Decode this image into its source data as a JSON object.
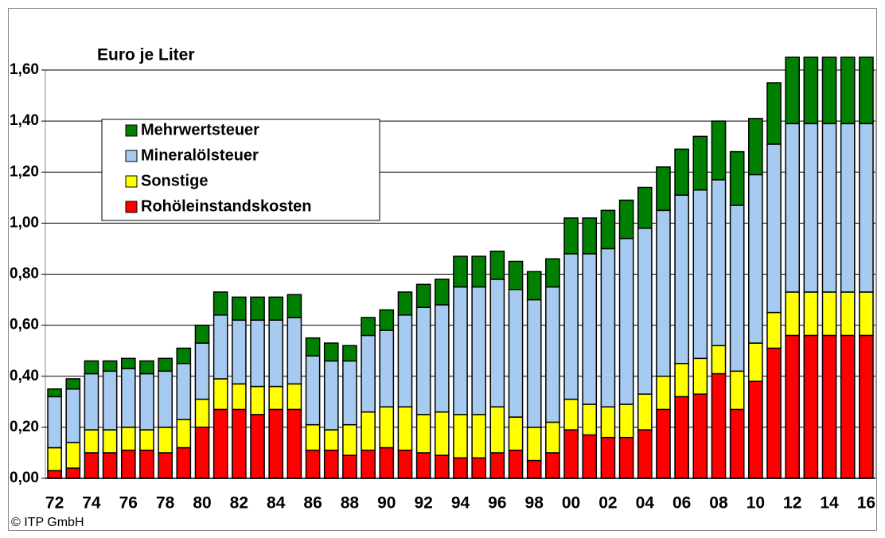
{
  "chart_data": {
    "type": "stacked_bar",
    "title": "Euro je Liter",
    "source": "© ITP GmbH",
    "categories": [
      "72",
      null,
      "74",
      null,
      "76",
      null,
      "78",
      null,
      "80",
      null,
      "82",
      null,
      "84",
      null,
      "86",
      null,
      "88",
      null,
      "90",
      null,
      "92",
      null,
      "94",
      null,
      "96",
      null,
      "98",
      null,
      "00",
      null,
      "02",
      null,
      "04",
      null,
      "06",
      null,
      "08",
      null,
      "10",
      null,
      "12",
      null,
      "14",
      null,
      "16"
    ],
    "series": [
      {
        "name": "Rohöleinstandskosten",
        "color": "#ff0000",
        "values": [
          0.03,
          0.04,
          0.1,
          0.1,
          0.11,
          0.11,
          0.1,
          0.12,
          0.2,
          0.27,
          0.27,
          0.25,
          0.27,
          0.27,
          0.11,
          0.11,
          0.09,
          0.11,
          0.12,
          0.11,
          0.1,
          0.09,
          0.08,
          0.08,
          0.1,
          0.11,
          0.07,
          0.1,
          0.19,
          0.17,
          0.16,
          0.16,
          0.19,
          0.27,
          0.32,
          0.33,
          0.41,
          0.27,
          0.38,
          0.51,
          0.56,
          0.56,
          0.56,
          0.56,
          0.56
        ]
      },
      {
        "name": "Sonstige",
        "color": "#ffff00",
        "values": [
          0.09,
          0.1,
          0.09,
          0.09,
          0.09,
          0.08,
          0.1,
          0.11,
          0.11,
          0.12,
          0.1,
          0.11,
          0.09,
          0.1,
          0.1,
          0.08,
          0.12,
          0.15,
          0.16,
          0.17,
          0.15,
          0.17,
          0.17,
          0.17,
          0.18,
          0.13,
          0.13,
          0.12,
          0.12,
          0.12,
          0.12,
          0.13,
          0.14,
          0.13,
          0.13,
          0.14,
          0.11,
          0.15,
          0.15,
          0.14,
          0.17,
          0.17,
          0.17,
          0.17,
          0.17
        ]
      },
      {
        "name": "Mineralölsteuer",
        "color": "#a6caf0",
        "values": [
          0.2,
          0.21,
          0.22,
          0.23,
          0.23,
          0.22,
          0.22,
          0.22,
          0.22,
          0.25,
          0.25,
          0.26,
          0.26,
          0.26,
          0.27,
          0.27,
          0.25,
          0.3,
          0.3,
          0.36,
          0.42,
          0.42,
          0.5,
          0.5,
          0.5,
          0.5,
          0.5,
          0.53,
          0.57,
          0.59,
          0.62,
          0.65,
          0.65,
          0.65,
          0.66,
          0.66,
          0.65,
          0.65,
          0.66,
          0.66,
          0.66,
          0.66,
          0.66,
          0.66,
          0.66
        ]
      },
      {
        "name": "Mehrwertsteuer",
        "color": "#008000",
        "values": [
          0.03,
          0.04,
          0.05,
          0.04,
          0.04,
          0.05,
          0.05,
          0.06,
          0.07,
          0.09,
          0.09,
          0.09,
          0.09,
          0.09,
          0.07,
          0.07,
          0.06,
          0.07,
          0.08,
          0.09,
          0.09,
          0.1,
          0.12,
          0.12,
          0.11,
          0.11,
          0.11,
          0.11,
          0.14,
          0.14,
          0.15,
          0.15,
          0.16,
          0.17,
          0.18,
          0.21,
          0.23,
          0.21,
          0.22,
          0.24,
          0.26,
          0.26,
          0.26,
          0.26,
          0.26
        ]
      }
    ],
    "ylim": [
      0,
      1.6
    ],
    "yticks": [
      {
        "value": 0,
        "label": "0,00"
      },
      {
        "value": 0.2,
        "label": "0,20"
      },
      {
        "value": 0.4,
        "label": "0,40"
      },
      {
        "value": 0.6,
        "label": "0,60"
      },
      {
        "value": 0.8,
        "label": "0,80"
      },
      {
        "value": 1.0,
        "label": "1,00"
      },
      {
        "value": 1.2,
        "label": "1,20"
      },
      {
        "value": 1.4,
        "label": "1,40"
      },
      {
        "value": 1.6,
        "label": "1,60"
      }
    ],
    "grid": true,
    "legend": "upper left"
  }
}
